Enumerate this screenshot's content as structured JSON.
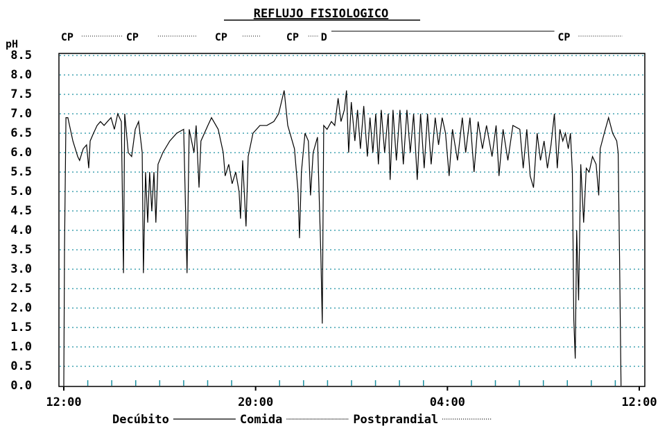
{
  "chart_data": {
    "type": "line",
    "title": "REFLUJO FISIOLOGICO",
    "y_label": "pH",
    "xlim": [
      0,
      24
    ],
    "ylim": [
      0,
      8.5
    ],
    "xticks": [
      {
        "value": 0,
        "label": "12:00"
      },
      {
        "value": 8,
        "label": "20:00"
      },
      {
        "value": 16,
        "label": "04:00"
      },
      {
        "value": 24,
        "label": "12:00"
      }
    ],
    "xminorticks": [
      1,
      2,
      3,
      4,
      5,
      6,
      7,
      9,
      10,
      11,
      12,
      13,
      14,
      15,
      17,
      18,
      19,
      20,
      21,
      22,
      23
    ],
    "yticks": [
      {
        "value": 0,
        "label": "0.0"
      },
      0.5,
      {
        "value": 1,
        "label": "1.0"
      },
      1.5,
      {
        "value": 2,
        "label": "2.0"
      },
      2.5,
      {
        "value": 3,
        "label": "3.0"
      },
      3.5,
      {
        "value": 4,
        "label": "4.0"
      },
      4.5,
      {
        "value": 5,
        "label": "5.0"
      },
      5.5,
      {
        "value": 6,
        "label": "6.0"
      },
      6.5,
      {
        "value": 7,
        "label": "7.0"
      },
      7.5,
      {
        "value": 8,
        "label": "8.0"
      },
      8.5
    ],
    "grid": true,
    "color": "#000000",
    "x": [
      0,
      0.03,
      0.09,
      0.17,
      0.38,
      0.58,
      0.66,
      0.81,
      0.95,
      1.04,
      1.1,
      1.24,
      1.39,
      1.53,
      1.68,
      1.82,
      1.97,
      2.11,
      2.25,
      2.4,
      2.49,
      2.54,
      2.69,
      2.83,
      2.98,
      3.12,
      3.27,
      3.32,
      3.41,
      3.5,
      3.58,
      3.67,
      3.76,
      3.84,
      3.93,
      4.13,
      4.42,
      4.71,
      5.0,
      5.14,
      5.23,
      5.43,
      5.52,
      5.64,
      5.72,
      6.01,
      6.16,
      6.44,
      6.65,
      6.73,
      6.88,
      7.02,
      7.17,
      7.31,
      7.37,
      7.46,
      7.6,
      7.69,
      7.89,
      8.18,
      8.47,
      8.76,
      8.96,
      9.19,
      9.34,
      9.48,
      9.62,
      9.77,
      9.83,
      9.91,
      10.06,
      10.2,
      10.29,
      10.4,
      10.58,
      10.72,
      10.78,
      10.84,
      10.98,
      11.16,
      11.3,
      11.44,
      11.56,
      11.7,
      11.79,
      11.88,
      11.99,
      12.14,
      12.25,
      12.37,
      12.51,
      12.66,
      12.77,
      12.89,
      13.01,
      13.12,
      13.24,
      13.38,
      13.53,
      13.61,
      13.73,
      13.87,
      14.02,
      14.16,
      14.31,
      14.45,
      14.59,
      14.74,
      14.88,
      15.03,
      15.17,
      15.32,
      15.49,
      15.63,
      15.78,
      15.92,
      16.07,
      16.21,
      16.42,
      16.62,
      16.76,
      16.94,
      17.11,
      17.28,
      17.46,
      17.63,
      17.86,
      18.03,
      18.15,
      18.32,
      18.52,
      18.73,
      19.02,
      19.16,
      19.31,
      19.45,
      19.59,
      19.74,
      19.88,
      20.03,
      20.17,
      20.32,
      20.46,
      20.58,
      20.69,
      20.81,
      20.92,
      21.04,
      21.13,
      21.21,
      21.27,
      21.33,
      21.39,
      21.47,
      21.56,
      21.68,
      21.79,
      21.91,
      22.05,
      22.2,
      22.31,
      22.37,
      22.54,
      22.72,
      22.89,
      23.06,
      23.12,
      23.18,
      23.24
    ],
    "values": [
      0,
      3.5,
      6.9,
      6.9,
      6.3,
      5.9,
      5.8,
      6.1,
      6.2,
      5.6,
      6.3,
      6.5,
      6.7,
      6.8,
      6.7,
      6.8,
      6.9,
      6.6,
      7.0,
      6.8,
      2.9,
      7.0,
      6.0,
      5.9,
      6.6,
      6.8,
      6.0,
      2.9,
      5.5,
      4.2,
      5.5,
      4.5,
      5.5,
      4.2,
      5.7,
      6.0,
      6.3,
      6.5,
      6.6,
      2.9,
      6.6,
      6.0,
      6.7,
      5.1,
      6.3,
      6.7,
      6.9,
      6.6,
      6.0,
      5.4,
      5.7,
      5.2,
      5.5,
      5.0,
      4.3,
      5.8,
      4.1,
      5.9,
      6.5,
      6.7,
      6.7,
      6.8,
      7.0,
      7.6,
      6.7,
      6.4,
      6.1,
      5.0,
      3.8,
      5.5,
      6.5,
      6.3,
      4.9,
      6.0,
      6.4,
      3.4,
      1.6,
      6.7,
      6.6,
      6.8,
      6.7,
      7.4,
      6.8,
      7.1,
      7.6,
      6.0,
      7.3,
      6.3,
      7.1,
      6.1,
      7.2,
      5.9,
      6.9,
      6.0,
      7.0,
      5.7,
      7.1,
      6.0,
      7.0,
      5.3,
      7.1,
      5.8,
      7.1,
      5.7,
      7.1,
      6.0,
      7.0,
      5.3,
      7.0,
      5.6,
      7.0,
      5.7,
      6.9,
      6.2,
      6.9,
      6.5,
      5.4,
      6.6,
      5.8,
      6.9,
      6.0,
      6.9,
      5.5,
      6.8,
      6.1,
      6.7,
      5.9,
      6.7,
      5.4,
      6.6,
      5.8,
      6.7,
      6.6,
      5.6,
      6.6,
      5.4,
      5.1,
      6.5,
      5.8,
      6.3,
      5.6,
      6.2,
      7.0,
      5.6,
      6.6,
      6.3,
      6.5,
      6.1,
      6.5,
      5.5,
      1.7,
      0.7,
      4.0,
      2.2,
      5.7,
      4.2,
      5.6,
      5.5,
      5.9,
      5.7,
      4.9,
      6.1,
      6.5,
      6.9,
      6.5,
      6.3,
      6.0,
      3.2,
      0.0
    ],
    "events": [
      {
        "label": "CP",
        "x": -0.12,
        "line_start": 0.75,
        "line_end": 2.43,
        "line": "dotted"
      },
      {
        "label": "CP",
        "x": 2.6,
        "line_start": 3.93,
        "line_end": 5.52,
        "line": "dotted"
      },
      {
        "label": "CP",
        "x": 6.3,
        "line_start": 7.46,
        "line_end": 8.18,
        "line": "dotted"
      },
      {
        "label": "CP",
        "x": 9.28,
        "line_start": 10.2,
        "line_end": 10.64,
        "line": "dotted"
      },
      {
        "label": "D",
        "x": 10.72,
        "line_start": 11.16,
        "line_end": 20.46,
        "line": "solid"
      },
      {
        "label": "CP",
        "x": 20.6,
        "line_start": 21.47,
        "line_end": 23.3,
        "line": "dotted"
      }
    ],
    "legend": [
      {
        "name": "Decúbito",
        "line": "solid"
      },
      {
        "name": "Comida",
        "line": "dense"
      },
      {
        "name": "Postprandial",
        "line": "dotted"
      }
    ]
  }
}
